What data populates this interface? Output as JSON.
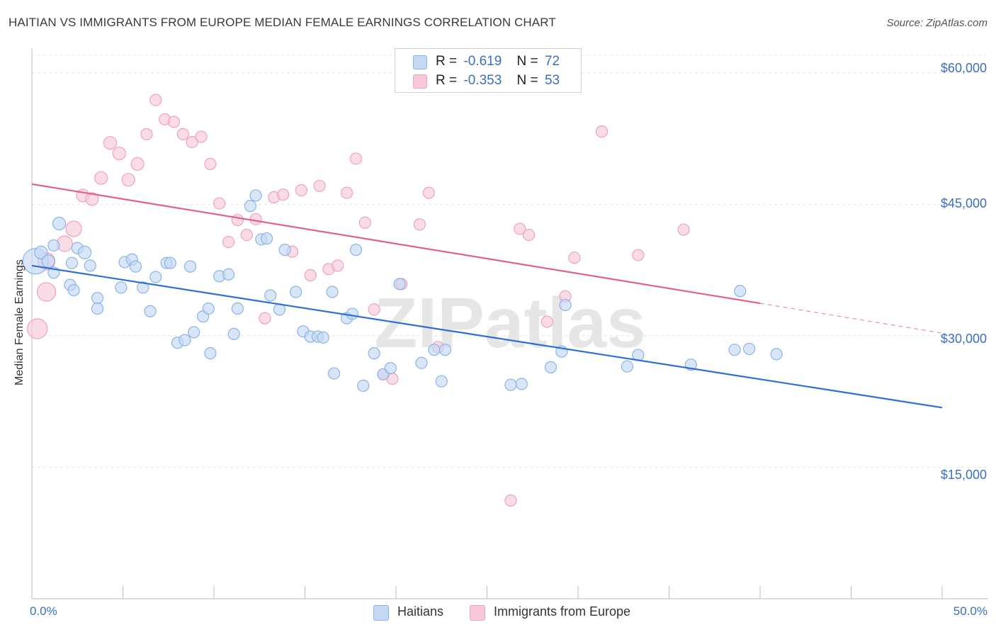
{
  "title": "HAITIAN VS IMMIGRANTS FROM EUROPE MEDIAN FEMALE EARNINGS CORRELATION CHART",
  "source": "Source: ZipAtlas.com",
  "watermark": "ZIPatlas",
  "legend": {
    "r_label": "R =",
    "n_label": "N =",
    "series": [
      {
        "name": "Haitians",
        "r": "-0.619",
        "n": "72",
        "color": "#8ab4e8",
        "fill": "#c5d9f4",
        "line": "#2d6fd2"
      },
      {
        "name": "Immigrants from Europe",
        "r": "-0.353",
        "n": "53",
        "color": "#f0a2bb",
        "fill": "#f8cad8",
        "line": "#e0628c"
      }
    ]
  },
  "chart_data": {
    "type": "scatter",
    "title": "HAITIAN VS IMMIGRANTS FROM EUROPE MEDIAN FEMALE EARNINGS CORRELATION CHART",
    "xlabel": "",
    "ylabel": "Median Female Earnings",
    "xlim": [
      0,
      50
    ],
    "ylim": [
      0,
      62000
    ],
    "x_tick_labels": [
      "0.0%",
      "50.0%"
    ],
    "y_ticks": [
      15000,
      30000,
      45000,
      60000
    ],
    "y_tick_labels": [
      "$15,000",
      "$30,000",
      "$45,000",
      "$60,000"
    ],
    "grid": true,
    "legend_position": "top-center",
    "series": [
      {
        "name": "Haitians",
        "trend": {
          "x": [
            0,
            50
          ],
          "y": [
            38000,
            21800
          ]
        },
        "points": [
          [
            0.2,
            38500,
            18
          ],
          [
            0.5,
            39500,
            9
          ],
          [
            0.9,
            38500,
            9
          ],
          [
            1.2,
            37200,
            8
          ],
          [
            1.2,
            40300,
            8
          ],
          [
            1.5,
            42800,
            9
          ],
          [
            2.1,
            35800,
            8
          ],
          [
            2.3,
            35200,
            8
          ],
          [
            2.2,
            38300,
            8
          ],
          [
            2.5,
            40000,
            8
          ],
          [
            2.9,
            39500,
            9
          ],
          [
            3.2,
            38000,
            8
          ],
          [
            3.6,
            34300,
            8
          ],
          [
            3.6,
            33100,
            8
          ],
          [
            4.9,
            35500,
            8
          ],
          [
            5.1,
            38400,
            8
          ],
          [
            5.5,
            38700,
            8
          ],
          [
            5.7,
            37900,
            8
          ],
          [
            6.1,
            35500,
            8
          ],
          [
            6.5,
            32800,
            8
          ],
          [
            6.8,
            36700,
            8
          ],
          [
            7.4,
            38300,
            8
          ],
          [
            7.6,
            38300,
            8
          ],
          [
            8.0,
            29200,
            8
          ],
          [
            8.4,
            29500,
            8
          ],
          [
            8.7,
            37900,
            8
          ],
          [
            8.9,
            30400,
            8
          ],
          [
            9.4,
            32200,
            8
          ],
          [
            9.7,
            33100,
            8
          ],
          [
            9.8,
            28000,
            8
          ],
          [
            10.3,
            36800,
            8
          ],
          [
            10.8,
            37000,
            8
          ],
          [
            11.1,
            30200,
            8
          ],
          [
            11.3,
            33100,
            8
          ],
          [
            12.0,
            44800,
            8
          ],
          [
            12.3,
            46000,
            8
          ],
          [
            12.6,
            41000,
            8
          ],
          [
            12.9,
            41100,
            8
          ],
          [
            13.1,
            34600,
            8
          ],
          [
            13.6,
            33000,
            8
          ],
          [
            13.9,
            39800,
            8
          ],
          [
            14.5,
            35000,
            8
          ],
          [
            14.9,
            30500,
            8
          ],
          [
            15.3,
            29900,
            8
          ],
          [
            15.7,
            29900,
            8
          ],
          [
            16.0,
            29800,
            8
          ],
          [
            16.5,
            35000,
            8
          ],
          [
            16.6,
            25700,
            8
          ],
          [
            17.3,
            32000,
            8
          ],
          [
            17.6,
            32500,
            8
          ],
          [
            17.8,
            39800,
            8
          ],
          [
            18.2,
            24300,
            8
          ],
          [
            18.8,
            28000,
            8
          ],
          [
            19.3,
            25600,
            8
          ],
          [
            19.7,
            26300,
            8
          ],
          [
            20.2,
            35900,
            8
          ],
          [
            21.4,
            26900,
            8
          ],
          [
            22.1,
            28400,
            8
          ],
          [
            22.7,
            28400,
            8
          ],
          [
            22.5,
            24800,
            8
          ],
          [
            26.3,
            24400,
            8
          ],
          [
            26.9,
            24500,
            8
          ],
          [
            28.5,
            26400,
            8
          ],
          [
            29.1,
            28200,
            8
          ],
          [
            29.3,
            33500,
            8
          ],
          [
            32.7,
            26500,
            8
          ],
          [
            33.3,
            27800,
            8
          ],
          [
            36.2,
            26700,
            8
          ],
          [
            38.6,
            28400,
            8
          ],
          [
            39.4,
            28500,
            8
          ],
          [
            38.9,
            35100,
            8
          ],
          [
            40.9,
            27900,
            8
          ]
        ]
      },
      {
        "name": "Immigrants from Europe",
        "trend": {
          "x": [
            0,
            40
          ],
          "y": [
            47300,
            33700
          ]
        },
        "trend_dashed": {
          "x": [
            40,
            50
          ],
          "y": [
            33700,
            30300
          ]
        },
        "points": [
          [
            0.3,
            30800,
            14
          ],
          [
            0.8,
            38500,
            12
          ],
          [
            0.8,
            35000,
            13
          ],
          [
            1.8,
            40500,
            11
          ],
          [
            2.3,
            42200,
            11
          ],
          [
            2.8,
            46000,
            9
          ],
          [
            3.3,
            45600,
            9
          ],
          [
            3.8,
            48000,
            9
          ],
          [
            4.3,
            52000,
            9
          ],
          [
            4.8,
            50800,
            9
          ],
          [
            5.3,
            47800,
            9
          ],
          [
            5.8,
            49600,
            9
          ],
          [
            6.3,
            53000,
            8
          ],
          [
            6.8,
            56900,
            8
          ],
          [
            7.3,
            54700,
            8
          ],
          [
            7.8,
            54400,
            8
          ],
          [
            8.3,
            53000,
            8
          ],
          [
            8.8,
            52100,
            8
          ],
          [
            9.3,
            52700,
            8
          ],
          [
            9.8,
            49600,
            8
          ],
          [
            10.3,
            45100,
            8
          ],
          [
            10.8,
            40700,
            8
          ],
          [
            11.3,
            43200,
            8
          ],
          [
            11.8,
            41500,
            8
          ],
          [
            12.3,
            43300,
            8
          ],
          [
            12.8,
            32000,
            8
          ],
          [
            13.3,
            45800,
            8
          ],
          [
            13.8,
            46100,
            8
          ],
          [
            14.3,
            39600,
            8
          ],
          [
            14.8,
            46600,
            8
          ],
          [
            15.3,
            36900,
            8
          ],
          [
            15.8,
            47100,
            8
          ],
          [
            16.3,
            37600,
            8
          ],
          [
            16.8,
            38000,
            8
          ],
          [
            17.3,
            46300,
            8
          ],
          [
            17.8,
            50200,
            8
          ],
          [
            18.3,
            42900,
            8
          ],
          [
            18.8,
            33000,
            8
          ],
          [
            19.3,
            25600,
            8
          ],
          [
            19.8,
            25100,
            8
          ],
          [
            20.3,
            35900,
            8
          ],
          [
            21.3,
            42700,
            8
          ],
          [
            21.8,
            46300,
            8
          ],
          [
            22.3,
            28700,
            8
          ],
          [
            26.3,
            11200,
            8
          ],
          [
            26.8,
            42200,
            8
          ],
          [
            27.3,
            41500,
            8
          ],
          [
            28.3,
            31600,
            8
          ],
          [
            29.3,
            34500,
            8
          ],
          [
            29.8,
            38900,
            8
          ],
          [
            31.3,
            53300,
            8
          ],
          [
            33.3,
            39200,
            8
          ],
          [
            35.8,
            42100,
            8
          ]
        ]
      }
    ]
  }
}
